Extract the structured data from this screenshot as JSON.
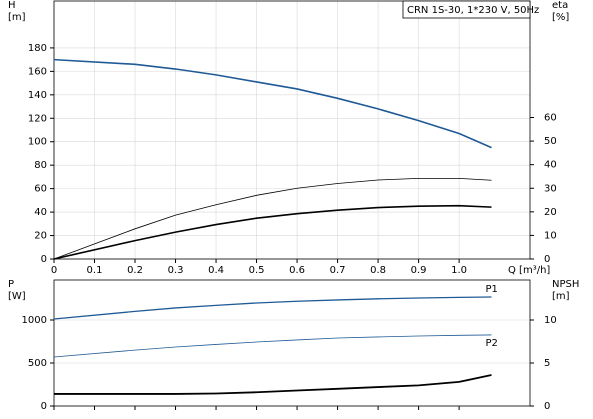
{
  "chart_data": [
    {
      "type": "line",
      "legend_title": "CRN 1S-30, 1*230 V, 50Hz",
      "ylabel": "H",
      "ylabel_unit": "[m]",
      "y2label": "eta",
      "y2label_unit": "[%]",
      "xlabel": "Q [m³/h]",
      "x": [
        0,
        0.2,
        0.3,
        0.4,
        0.5,
        0.6,
        0.7,
        0.8,
        0.9,
        1.0,
        1.08
      ],
      "xlim": [
        0,
        1.175
      ],
      "xticks": [
        0,
        0.1,
        0.2,
        0.3,
        0.4,
        0.5,
        0.6,
        0.7,
        0.8,
        0.9,
        {
          "value": 1,
          "label": "1.0"
        }
      ],
      "ylim": [
        0,
        220
      ],
      "yticks": [
        0,
        20,
        40,
        60,
        80,
        100,
        120,
        140,
        160,
        180
      ],
      "y2lim": [
        0,
        109.4
      ],
      "y2ticks": [
        0,
        10,
        20,
        30,
        40,
        50,
        60
      ],
      "grid": true,
      "series": [
        {
          "color": "#1f5a96",
          "values": [
            170,
            166,
            162,
            157,
            151,
            145,
            137,
            128,
            118,
            107,
            95
          ]
        },
        {
          "color": "#000000",
          "axis": "y2",
          "values": [
            0,
            12.8,
            18.6,
            23,
            27,
            30,
            32,
            33.5,
            34.2,
            34.2,
            33.4
          ]
        },
        {
          "color": "#000000",
          "axis": "y2",
          "values": [
            0,
            7.8,
            11.4,
            14.6,
            17.3,
            19.2,
            20.7,
            21.8,
            22.4,
            22.6,
            22
          ]
        }
      ]
    },
    {
      "type": "line",
      "ylabel": "P",
      "ylabel_unit": "[W]",
      "y2label": "NPSH",
      "y2label_unit": "[m]",
      "x": [
        0,
        0.2,
        0.3,
        0.4,
        0.5,
        0.6,
        0.7,
        0.8,
        0.9,
        1.0,
        1.08
      ],
      "xlim": [
        0,
        1.175
      ],
      "ylim": [
        0,
        1465
      ],
      "yticks": [
        0,
        500,
        1000
      ],
      "y2lim": [
        0,
        14.65
      ],
      "y2ticks": [
        0,
        5,
        10
      ],
      "grid": true,
      "series": [
        {
          "name": "P1",
          "color": "#1f5a96",
          "values": [
            1012,
            1100,
            1140,
            1170,
            1198,
            1218,
            1233,
            1246,
            1256,
            1263,
            1267
          ]
        },
        {
          "name": "P2",
          "color": "#1f5a96",
          "values": [
            570,
            650,
            686,
            716,
            744,
            768,
            791,
            803,
            814,
            822,
            826
          ]
        },
        {
          "color": "#000000",
          "axis": "y2",
          "values": [
            1.4,
            1.4,
            1.4,
            1.45,
            1.6,
            1.8,
            2.0,
            2.2,
            2.4,
            2.8,
            3.6
          ]
        }
      ]
    }
  ]
}
